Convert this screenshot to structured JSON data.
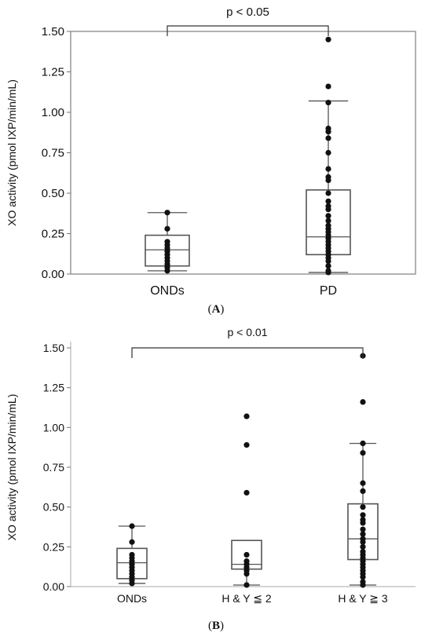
{
  "chart_data": [
    {
      "type": "box",
      "panel_label": "A",
      "ylabel": "XO activity (pmol IXP/min/mL)",
      "ylim": [
        0,
        1.5
      ],
      "yticks": [
        "0.00",
        "0.25",
        "0.50",
        "0.75",
        "1.00",
        "1.25",
        "1.50"
      ],
      "categories": [
        "ONDs",
        "PD"
      ],
      "significance": {
        "label": "p < 0.05",
        "from": "ONDs",
        "to": "PD"
      },
      "boxes": [
        {
          "category": "ONDs",
          "whisker_low": 0.02,
          "q1": 0.05,
          "median": 0.15,
          "q3": 0.24,
          "whisker_high": 0.38,
          "points": [
            0.02,
            0.04,
            0.06,
            0.08,
            0.1,
            0.12,
            0.14,
            0.16,
            0.18,
            0.2,
            0.28,
            0.38
          ]
        },
        {
          "category": "PD",
          "whisker_low": 0.01,
          "q1": 0.12,
          "median": 0.23,
          "q3": 0.52,
          "whisker_high": 1.07,
          "points": [
            0.01,
            0.02,
            0.05,
            0.08,
            0.1,
            0.12,
            0.14,
            0.16,
            0.18,
            0.2,
            0.22,
            0.24,
            0.26,
            0.28,
            0.3,
            0.33,
            0.36,
            0.4,
            0.42,
            0.45,
            0.5,
            0.58,
            0.6,
            0.65,
            0.75,
            0.84,
            0.88,
            0.9,
            1.06,
            1.16,
            1.45
          ]
        }
      ]
    },
    {
      "type": "box",
      "panel_label": "B",
      "ylabel": "XO activity (pmol IXP/min/mL)",
      "ylim": [
        0,
        1.5
      ],
      "yticks": [
        "0.00",
        "0.25",
        "0.50",
        "0.75",
        "1.00",
        "1.25",
        "1.50"
      ],
      "categories": [
        "ONDs",
        "H & Y ≦ 2",
        "H & Y ≧ 3"
      ],
      "significance": {
        "label": "p < 0.01",
        "from": "ONDs",
        "to": "H & Y ≧ 3"
      },
      "boxes": [
        {
          "category": "ONDs",
          "whisker_low": 0.02,
          "q1": 0.05,
          "median": 0.15,
          "q3": 0.24,
          "whisker_high": 0.38,
          "points": [
            0.02,
            0.04,
            0.06,
            0.08,
            0.1,
            0.12,
            0.14,
            0.16,
            0.18,
            0.2,
            0.28,
            0.38
          ]
        },
        {
          "category": "H & Y ≦ 2",
          "whisker_low": 0.01,
          "q1": 0.11,
          "median": 0.14,
          "q3": 0.29,
          "whisker_high": 0.29,
          "points": [
            0.01,
            0.08,
            0.1,
            0.12,
            0.14,
            0.16,
            0.2,
            0.59,
            0.89,
            1.07
          ]
        },
        {
          "category": "H & Y ≧ 3",
          "whisker_low": 0.01,
          "q1": 0.17,
          "median": 0.3,
          "q3": 0.52,
          "whisker_high": 0.9,
          "points": [
            0.01,
            0.03,
            0.06,
            0.08,
            0.1,
            0.12,
            0.14,
            0.16,
            0.18,
            0.2,
            0.22,
            0.25,
            0.28,
            0.3,
            0.33,
            0.36,
            0.4,
            0.42,
            0.45,
            0.5,
            0.6,
            0.65,
            0.84,
            0.9,
            1.16,
            1.45
          ]
        }
      ]
    }
  ]
}
